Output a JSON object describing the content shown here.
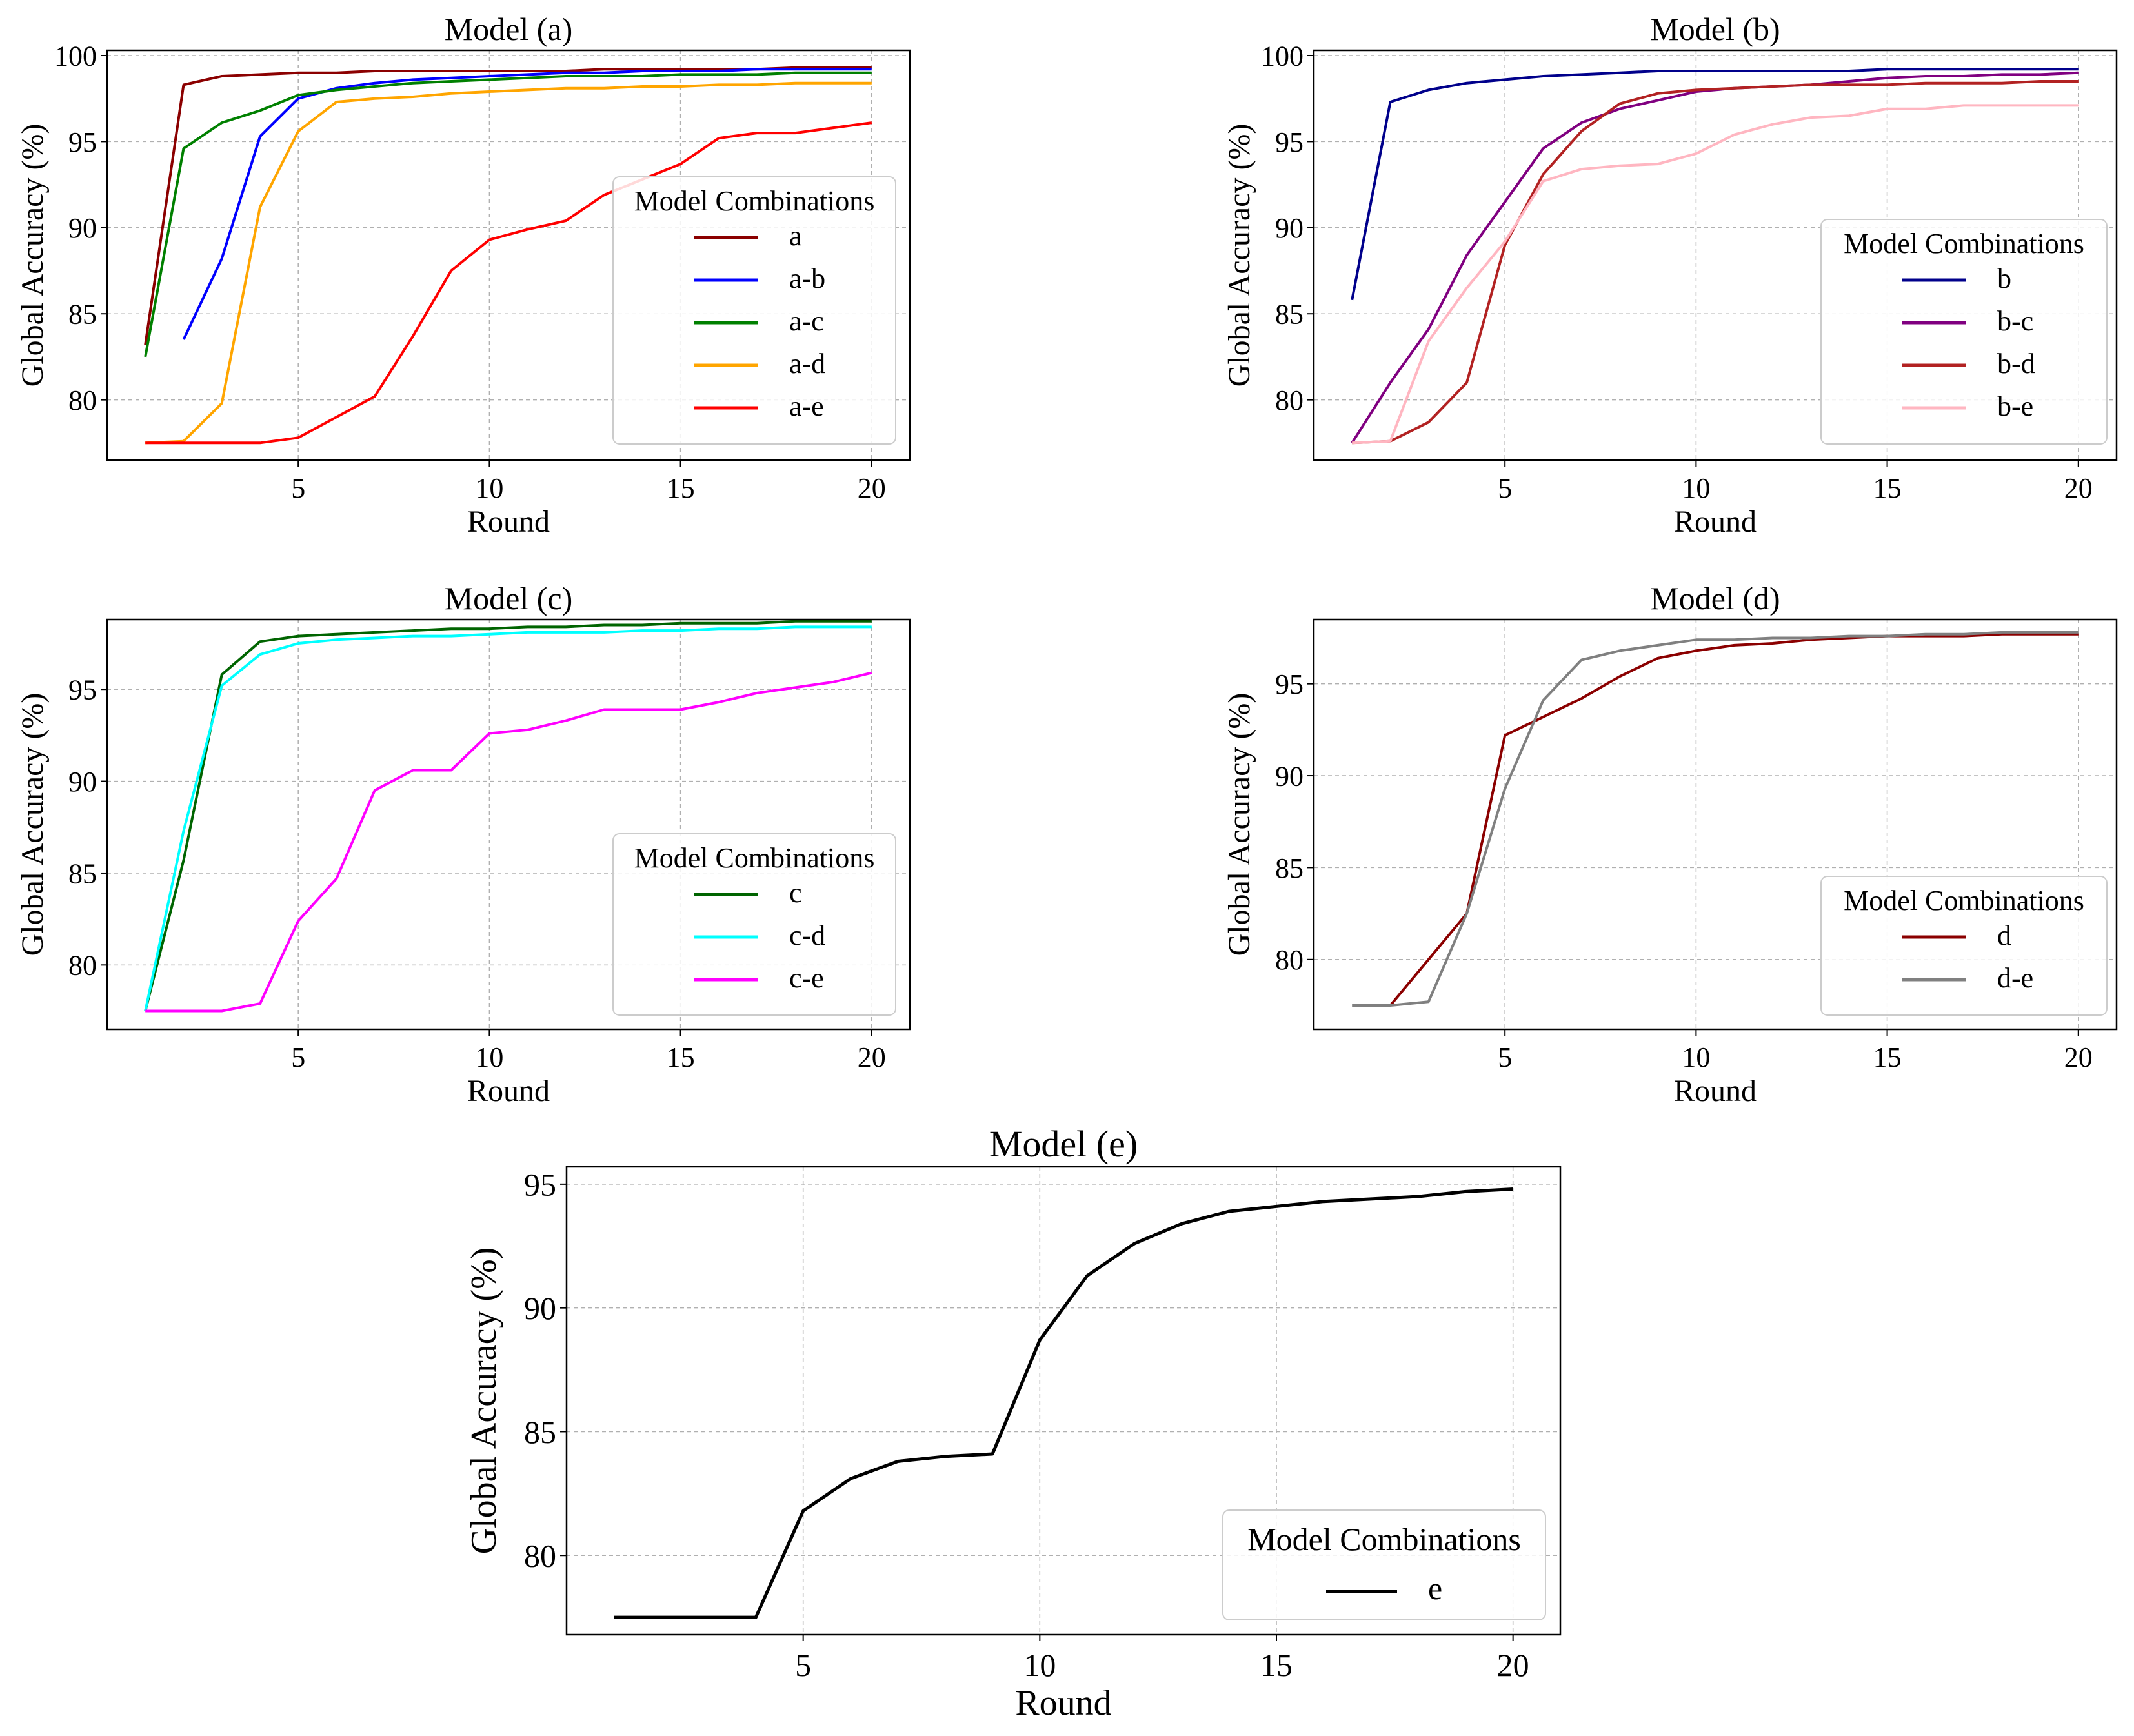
{
  "figure": {
    "xlabel": "Round",
    "ylabel": "Global Accuracy (%)",
    "legend_title": "Model Combinations"
  },
  "chart_data": [
    {
      "type": "line",
      "title": "Model (a)",
      "xlabel": "Round",
      "ylabel": "Global Accuracy (%)",
      "xlim": [
        0,
        21
      ],
      "ylim": [
        76.5,
        100.3
      ],
      "xticks": [
        5,
        10,
        15,
        20
      ],
      "yticks": [
        80,
        85,
        90,
        95,
        100
      ],
      "grid": true,
      "legend_title": "Model Combinations",
      "legend_position": "right",
      "series": [
        {
          "name": "a",
          "color": "#8b0000",
          "x": [
            1,
            2,
            3,
            4,
            5,
            6,
            7,
            8,
            9,
            10,
            11,
            12,
            13,
            14,
            15,
            16,
            17,
            18,
            19,
            20
          ],
          "values": [
            83.2,
            98.3,
            98.8,
            98.9,
            99.0,
            99.0,
            99.1,
            99.1,
            99.1,
            99.1,
            99.1,
            99.1,
            99.2,
            99.2,
            99.2,
            99.2,
            99.2,
            99.3,
            99.3,
            99.3
          ]
        },
        {
          "name": "a-b",
          "color": "#0000ff",
          "x": [
            2,
            3,
            4,
            5,
            6,
            7,
            8,
            9,
            10,
            11,
            12,
            13,
            14,
            15,
            16,
            17,
            18,
            19,
            20
          ],
          "values": [
            83.5,
            88.2,
            95.3,
            97.5,
            98.1,
            98.4,
            98.6,
            98.7,
            98.8,
            98.9,
            99.0,
            99.0,
            99.1,
            99.1,
            99.1,
            99.2,
            99.2,
            99.2,
            99.2
          ]
        },
        {
          "name": "a-c",
          "color": "#008000",
          "x": [
            1,
            2,
            3,
            4,
            5,
            6,
            7,
            8,
            9,
            10,
            11,
            12,
            13,
            14,
            15,
            16,
            17,
            18,
            19,
            20
          ],
          "values": [
            82.5,
            94.6,
            96.1,
            96.8,
            97.7,
            98.0,
            98.2,
            98.4,
            98.5,
            98.6,
            98.7,
            98.8,
            98.8,
            98.8,
            98.9,
            98.9,
            98.9,
            99.0,
            99.0,
            99.0
          ]
        },
        {
          "name": "a-d",
          "color": "#ffa500",
          "x": [
            1,
            2,
            3,
            4,
            5,
            6,
            7,
            8,
            9,
            10,
            11,
            12,
            13,
            14,
            15,
            16,
            17,
            18,
            19,
            20
          ],
          "values": [
            77.5,
            77.6,
            79.8,
            91.2,
            95.6,
            97.3,
            97.5,
            97.6,
            97.8,
            97.9,
            98.0,
            98.1,
            98.1,
            98.2,
            98.2,
            98.3,
            98.3,
            98.4,
            98.4,
            98.4
          ]
        },
        {
          "name": "a-e",
          "color": "#ff0000",
          "x": [
            1,
            2,
            3,
            4,
            5,
            6,
            7,
            8,
            9,
            10,
            11,
            12,
            13,
            14,
            15,
            16,
            17,
            18,
            19,
            20
          ],
          "values": [
            77.5,
            77.5,
            77.5,
            77.5,
            77.8,
            79.0,
            80.2,
            83.7,
            87.5,
            89.3,
            89.9,
            90.4,
            91.9,
            92.8,
            93.7,
            95.2,
            95.5,
            95.5,
            95.8,
            96.1
          ]
        }
      ]
    },
    {
      "type": "line",
      "title": "Model (b)",
      "xlabel": "Round",
      "ylabel": "Global Accuracy (%)",
      "xlim": [
        0,
        21
      ],
      "ylim": [
        76.5,
        100.3
      ],
      "xticks": [
        5,
        10,
        15,
        20
      ],
      "yticks": [
        80,
        85,
        90,
        95,
        100
      ],
      "grid": true,
      "legend_title": "Model Combinations",
      "legend_position": "right",
      "series": [
        {
          "name": "b",
          "color": "#00008b",
          "x": [
            1,
            2,
            3,
            4,
            5,
            6,
            7,
            8,
            9,
            10,
            11,
            12,
            13,
            14,
            15,
            16,
            17,
            18,
            19,
            20
          ],
          "values": [
            85.8,
            97.3,
            98.0,
            98.4,
            98.6,
            98.8,
            98.9,
            99.0,
            99.1,
            99.1,
            99.1,
            99.1,
            99.1,
            99.1,
            99.2,
            99.2,
            99.2,
            99.2,
            99.2,
            99.2
          ]
        },
        {
          "name": "b-c",
          "color": "#800080",
          "x": [
            1,
            2,
            3,
            4,
            5,
            6,
            7,
            8,
            9,
            10,
            11,
            12,
            13,
            14,
            15,
            16,
            17,
            18,
            19,
            20
          ],
          "values": [
            77.5,
            81.0,
            84.1,
            88.4,
            91.5,
            94.6,
            96.1,
            96.9,
            97.4,
            97.9,
            98.1,
            98.2,
            98.3,
            98.5,
            98.7,
            98.8,
            98.8,
            98.9,
            98.9,
            99.0
          ]
        },
        {
          "name": "b-d",
          "color": "#b22222",
          "x": [
            1,
            2,
            3,
            4,
            5,
            6,
            7,
            8,
            9,
            10,
            11,
            12,
            13,
            14,
            15,
            16,
            17,
            18,
            19,
            20
          ],
          "values": [
            77.5,
            77.6,
            78.7,
            81.0,
            89.0,
            93.1,
            95.6,
            97.2,
            97.8,
            98.0,
            98.1,
            98.2,
            98.3,
            98.3,
            98.3,
            98.4,
            98.4,
            98.4,
            98.5,
            98.5
          ]
        },
        {
          "name": "b-e",
          "color": "#ffb6c1",
          "x": [
            1,
            2,
            3,
            4,
            5,
            6,
            7,
            8,
            9,
            10,
            11,
            12,
            13,
            14,
            15,
            16,
            17,
            18,
            19,
            20
          ],
          "values": [
            77.5,
            77.6,
            83.4,
            86.5,
            89.2,
            92.7,
            93.4,
            93.6,
            93.7,
            94.3,
            95.4,
            96.0,
            96.4,
            96.5,
            96.9,
            96.9,
            97.1,
            97.1,
            97.1,
            97.1
          ]
        }
      ]
    },
    {
      "type": "line",
      "title": "Model (c)",
      "xlabel": "Round",
      "ylabel": "Global Accuracy (%)",
      "xlim": [
        0,
        21
      ],
      "ylim": [
        76.5,
        98.8
      ],
      "xticks": [
        5,
        10,
        15,
        20
      ],
      "yticks": [
        80,
        85,
        90,
        95
      ],
      "grid": true,
      "legend_title": "Model Combinations",
      "legend_position": "right",
      "series": [
        {
          "name": "c",
          "color": "#006400",
          "x": [
            1,
            2,
            3,
            4,
            5,
            6,
            7,
            8,
            9,
            10,
            11,
            12,
            13,
            14,
            15,
            16,
            17,
            18,
            19,
            20
          ],
          "values": [
            77.5,
            85.7,
            95.8,
            97.6,
            97.9,
            98.0,
            98.1,
            98.2,
            98.3,
            98.3,
            98.4,
            98.4,
            98.5,
            98.5,
            98.6,
            98.6,
            98.6,
            98.7,
            98.7,
            98.7
          ]
        },
        {
          "name": "c-d",
          "color": "#00ffff",
          "x": [
            1,
            2,
            3,
            4,
            5,
            6,
            7,
            8,
            9,
            10,
            11,
            12,
            13,
            14,
            15,
            16,
            17,
            18,
            19,
            20
          ],
          "values": [
            77.5,
            87.3,
            95.2,
            96.9,
            97.5,
            97.7,
            97.8,
            97.9,
            97.9,
            98.0,
            98.1,
            98.1,
            98.1,
            98.2,
            98.2,
            98.3,
            98.3,
            98.4,
            98.4,
            98.4
          ]
        },
        {
          "name": "c-e",
          "color": "#ff00ff",
          "x": [
            1,
            2,
            3,
            4,
            5,
            6,
            7,
            8,
            9,
            10,
            11,
            12,
            13,
            14,
            15,
            16,
            17,
            18,
            19,
            20
          ],
          "values": [
            77.5,
            77.5,
            77.5,
            77.9,
            82.4,
            84.7,
            89.5,
            90.6,
            90.6,
            92.6,
            92.8,
            93.3,
            93.9,
            93.9,
            93.9,
            94.3,
            94.8,
            95.1,
            95.4,
            95.9
          ]
        }
      ]
    },
    {
      "type": "line",
      "title": "Model (d)",
      "xlabel": "Round",
      "ylabel": "Global Accuracy (%)",
      "xlim": [
        0,
        21
      ],
      "ylim": [
        76.2,
        98.5
      ],
      "xticks": [
        5,
        10,
        15,
        20
      ],
      "yticks": [
        80,
        85,
        90,
        95
      ],
      "grid": true,
      "legend_title": "Model Combinations",
      "legend_position": "right",
      "series": [
        {
          "name": "d",
          "color": "#8b0000",
          "x": [
            2,
            3,
            4,
            5,
            6,
            7,
            8,
            9,
            10,
            11,
            12,
            13,
            14,
            15,
            16,
            17,
            18,
            19,
            20
          ],
          "values": [
            77.5,
            80.0,
            82.5,
            92.2,
            93.2,
            94.2,
            95.4,
            96.4,
            96.8,
            97.1,
            97.2,
            97.4,
            97.5,
            97.6,
            97.6,
            97.6,
            97.7,
            97.7,
            97.7
          ]
        },
        {
          "name": "d-e",
          "color": "#808080",
          "x": [
            1,
            2,
            3,
            4,
            5,
            6,
            7,
            8,
            9,
            10,
            11,
            12,
            13,
            14,
            15,
            16,
            17,
            18,
            19,
            20
          ],
          "values": [
            77.5,
            77.5,
            77.7,
            82.5,
            89.3,
            94.1,
            96.3,
            96.8,
            97.1,
            97.4,
            97.4,
            97.5,
            97.5,
            97.6,
            97.6,
            97.7,
            97.7,
            97.8,
            97.8,
            97.8
          ]
        }
      ]
    },
    {
      "type": "line",
      "title": "Model (e)",
      "xlabel": "Round",
      "ylabel": "Global Accuracy (%)",
      "xlim": [
        0,
        21
      ],
      "ylim": [
        76.8,
        95.7
      ],
      "xticks": [
        5,
        10,
        15,
        20
      ],
      "yticks": [
        80,
        85,
        90,
        95
      ],
      "grid": true,
      "legend_title": "Model Combinations",
      "legend_position": "lower right",
      "series": [
        {
          "name": "e",
          "color": "#000000",
          "x": [
            1,
            2,
            3,
            4,
            5,
            6,
            7,
            8,
            9,
            10,
            11,
            12,
            13,
            14,
            15,
            16,
            17,
            18,
            19,
            20
          ],
          "values": [
            77.5,
            77.5,
            77.5,
            77.5,
            81.8,
            83.1,
            83.8,
            84.0,
            84.1,
            88.7,
            91.3,
            92.6,
            93.4,
            93.9,
            94.1,
            94.3,
            94.4,
            94.5,
            94.7,
            94.8
          ]
        }
      ]
    }
  ]
}
